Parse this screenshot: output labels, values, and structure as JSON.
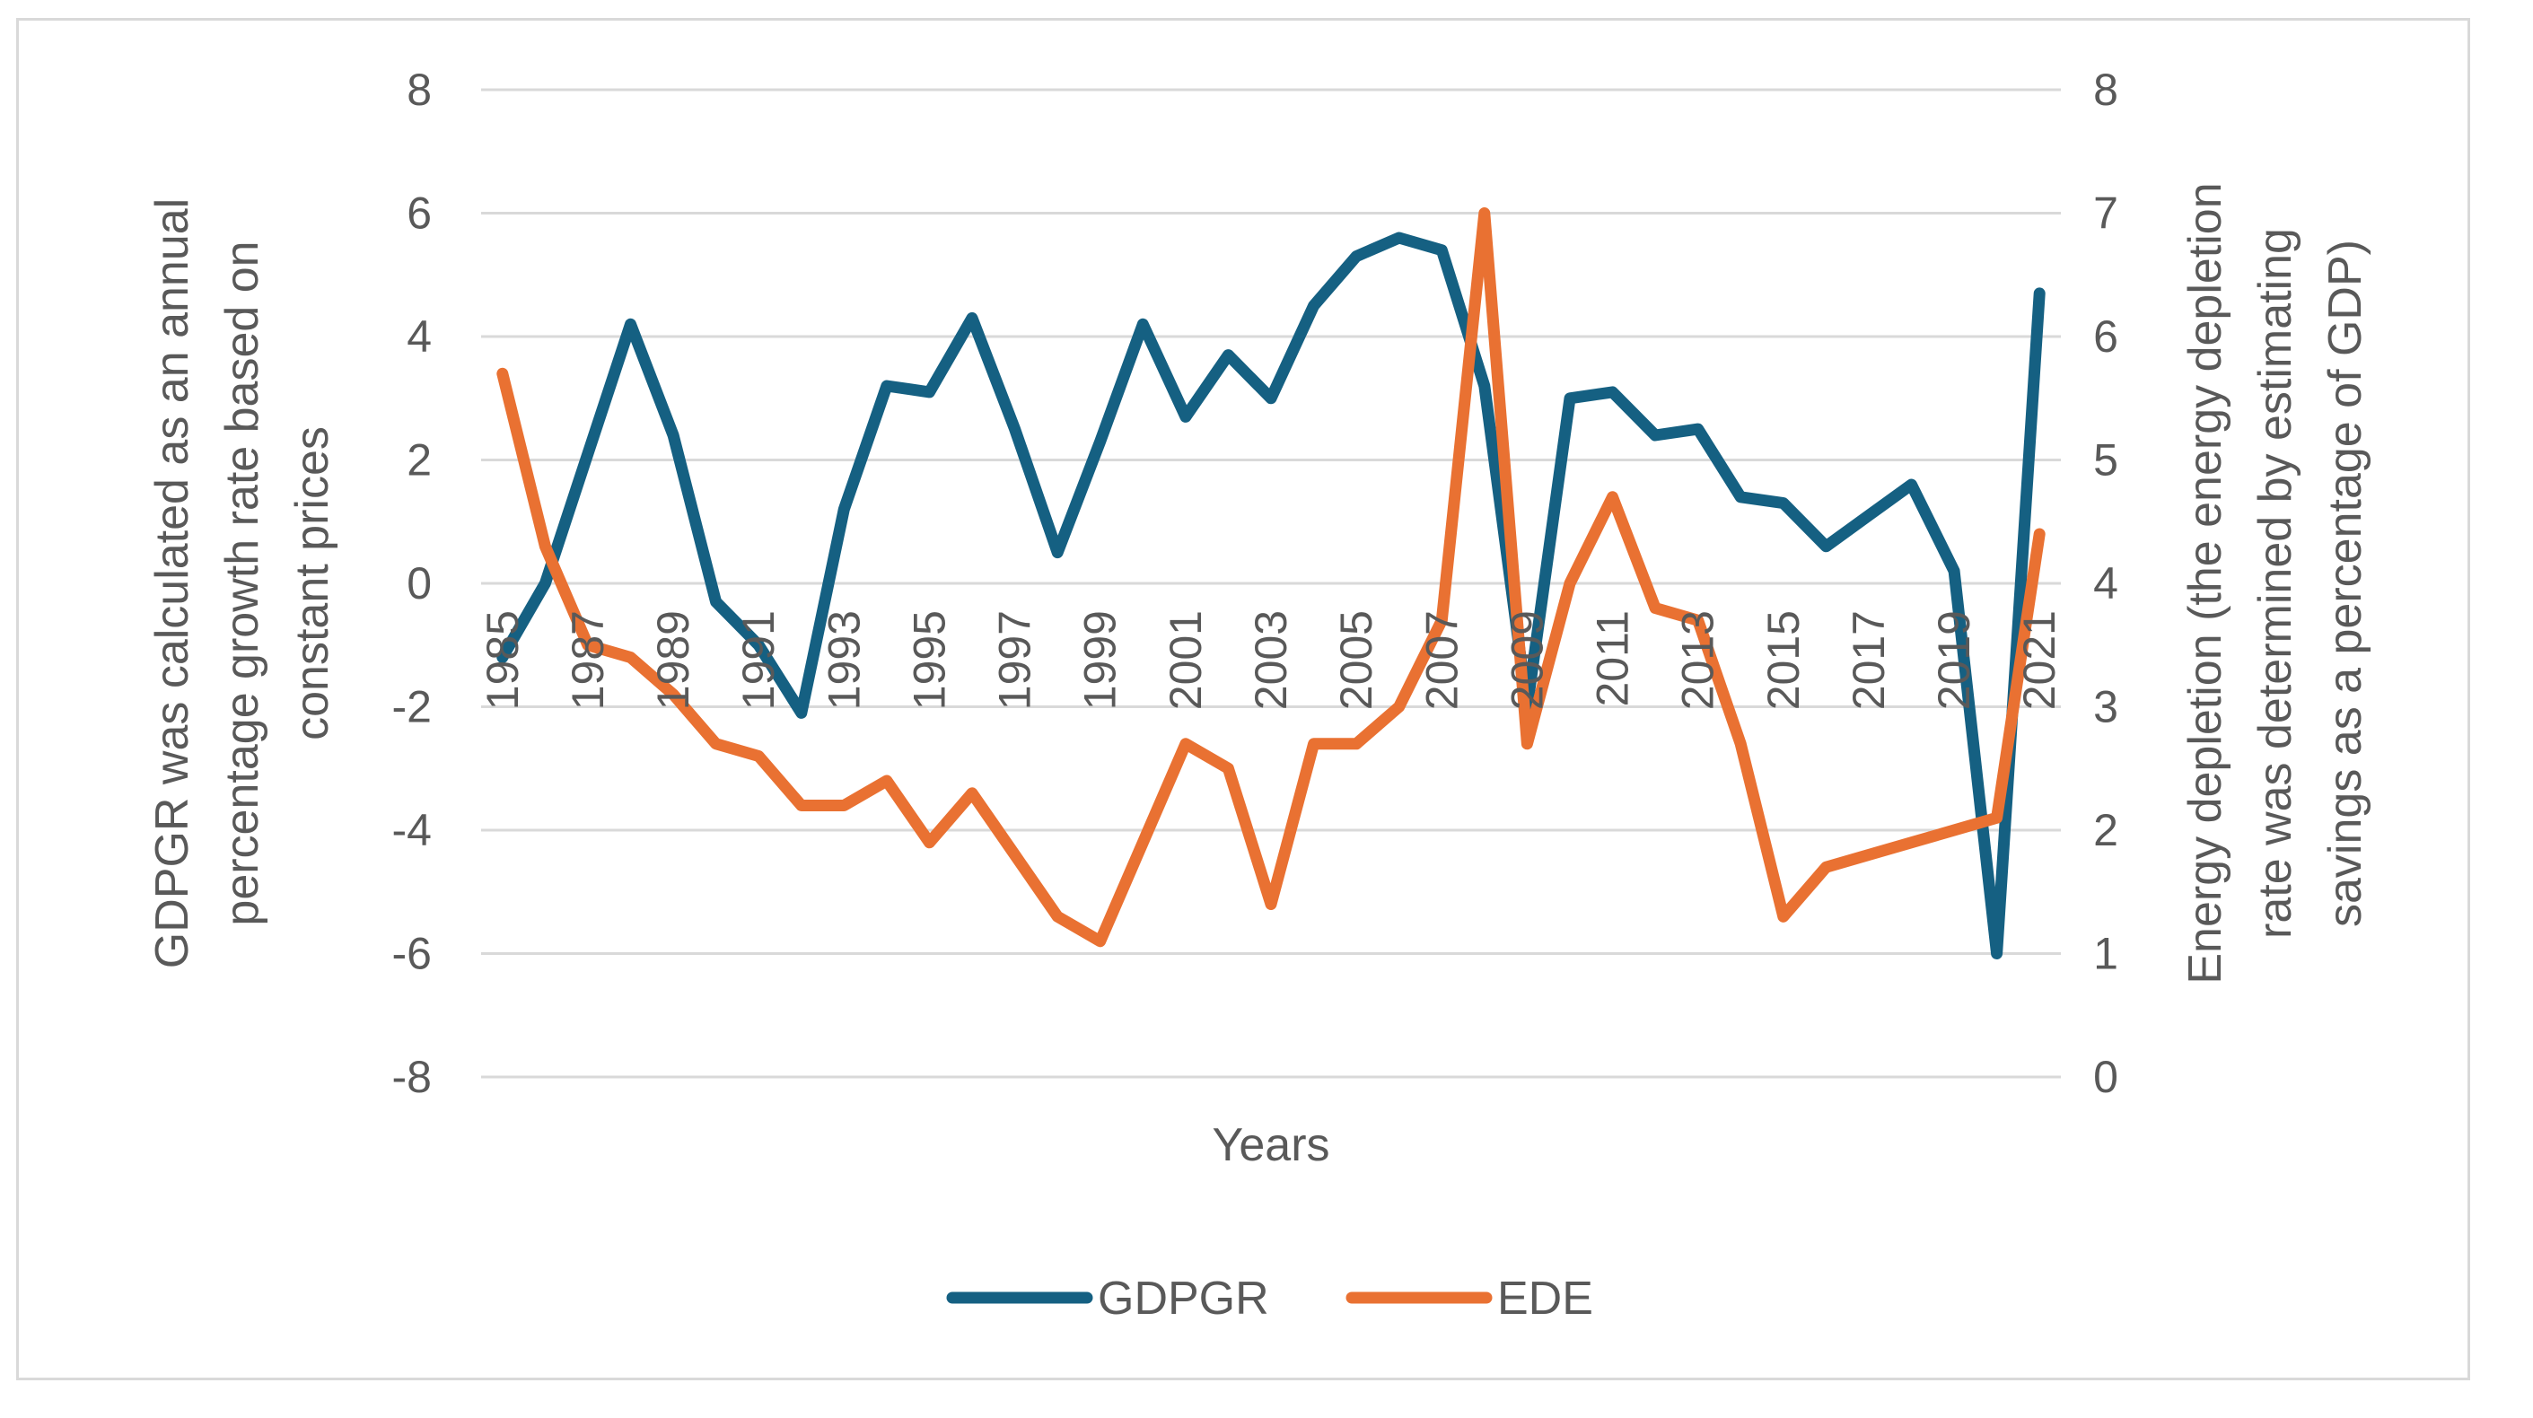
{
  "chart_data": {
    "type": "line",
    "title": "",
    "xlabel": "Years",
    "ylabel_left": [
      "GDPGR was calculated as an annual",
      "percentage growth rate based on",
      "constant prices"
    ],
    "ylabel_right": [
      "Energy depletion (the energy depletion",
      "rate was determined by estimating",
      "savings as a percentage of GDP)"
    ],
    "x": [
      1985,
      1986,
      1987,
      1988,
      1989,
      1990,
      1991,
      1992,
      1993,
      1994,
      1995,
      1996,
      1997,
      1998,
      1999,
      2000,
      2001,
      2002,
      2003,
      2004,
      2005,
      2006,
      2007,
      2008,
      2009,
      2010,
      2011,
      2012,
      2013,
      2014,
      2015,
      2016,
      2017,
      2018,
      2019,
      2020,
      2021
    ],
    "x_tick_labels": [
      "1985",
      "1987",
      "1989",
      "1991",
      "1993",
      "1995",
      "1997",
      "1999",
      "2001",
      "2003",
      "2005",
      "2007",
      "2009",
      "2011",
      "2013",
      "2015",
      "2017",
      "2019",
      "2021"
    ],
    "ylim_left": [
      -8,
      8
    ],
    "ylim_right": [
      0,
      8
    ],
    "y_ticks_left": [
      "8",
      "6",
      "4",
      "2",
      "0",
      "-2",
      "-4",
      "-6",
      "-8"
    ],
    "y_ticks_right": [
      "8",
      "7",
      "6",
      "5",
      "4",
      "3",
      "2",
      "1",
      "0"
    ],
    "grid": true,
    "legend": "bottom",
    "series": [
      {
        "name": "GDPGR",
        "axis": "left",
        "color": "#156082",
        "values": [
          -1.2,
          0.0,
          2.1,
          4.2,
          2.4,
          -0.3,
          -1.0,
          -2.1,
          1.2,
          3.2,
          3.1,
          4.3,
          2.5,
          0.5,
          2.3,
          4.2,
          2.7,
          3.7,
          3.0,
          4.5,
          5.3,
          5.6,
          5.4,
          3.2,
          -2.0,
          3.0,
          3.1,
          2.4,
          2.5,
          1.4,
          1.3,
          0.6,
          1.1,
          1.6,
          0.2,
          -6.0,
          4.7
        ]
      },
      {
        "name": "EDE",
        "axis": "right",
        "color": "#e97132",
        "values": [
          5.7,
          4.3,
          3.5,
          3.4,
          3.1,
          2.7,
          2.6,
          2.2,
          2.2,
          2.4,
          1.9,
          2.3,
          1.8,
          1.3,
          1.1,
          1.9,
          2.7,
          2.5,
          1.4,
          2.7,
          2.7,
          3.0,
          3.7,
          7.0,
          2.7,
          4.0,
          4.7,
          3.8,
          3.7,
          2.7,
          1.3,
          1.7,
          1.8,
          1.9,
          2.0,
          2.1,
          4.4
        ]
      }
    ]
  }
}
